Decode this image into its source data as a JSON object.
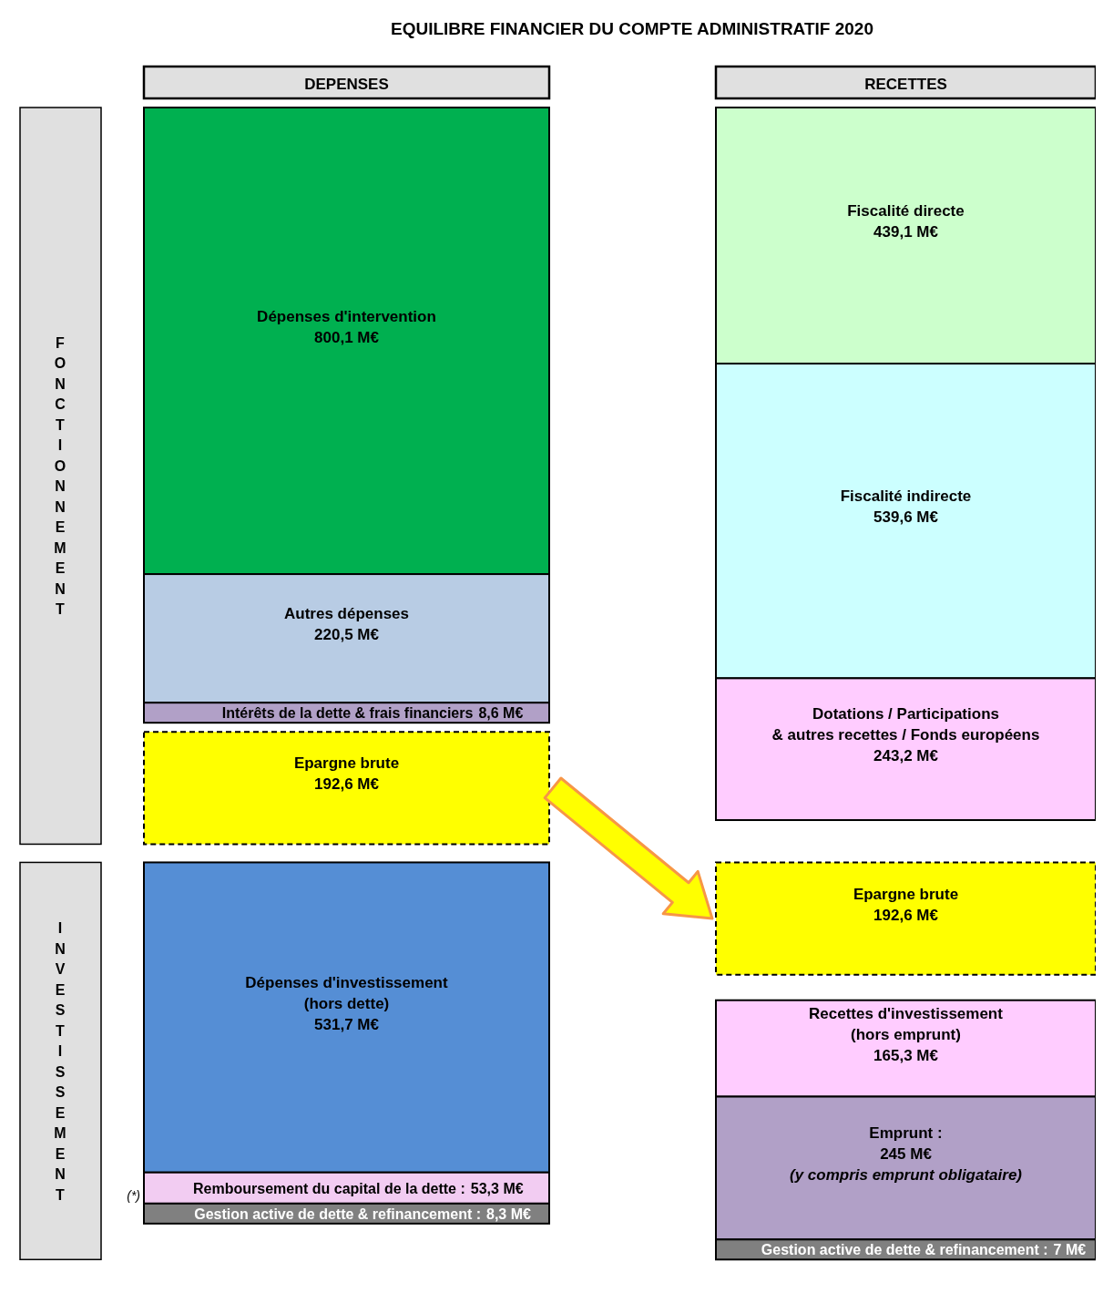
{
  "chart_data": {
    "type": "other",
    "title": "EQUILIBRE FINANCIER DU COMPTE ADMINISTRATIF 2020",
    "categories": [
      "DEPENSES",
      "RECETTES"
    ],
    "annotations": [
      "FONCTIONNEMENT",
      "INVESTISSEMENT",
      "(*)"
    ],
    "series": [
      {
        "name": "Dépenses d'intervention",
        "color": "#00b050",
        "values": [
          800.1,
          null
        ],
        "value_labels": [
          "800,1 M€",
          null
        ]
      },
      {
        "name": "Autres dépenses",
        "color": "#b8cce4",
        "values": [
          220.5,
          null
        ],
        "value_labels": [
          "220,5 M€",
          null
        ]
      },
      {
        "name": "Intérêts de la dette & frais financiers",
        "color": "#b1a0c7",
        "values": [
          8.6,
          null
        ],
        "value_labels": [
          "8,6 M€",
          null
        ]
      },
      {
        "name": "Epargne brute",
        "color": "#ffff00",
        "line_style": "dashed",
        "values": [
          192.6,
          null
        ],
        "value_labels": [
          "192,6 M€",
          null
        ]
      },
      {
        "name": "Dépenses d'investissement\n(hors dette)",
        "color": "#558ed5",
        "values": [
          531.7,
          null
        ],
        "value_labels": [
          "531,7 M€",
          null
        ]
      },
      {
        "name": "Remboursement du capital de la dette :",
        "color": "#f2ccf2",
        "values": [
          53.3,
          null
        ],
        "value_labels": [
          "53,3 M€",
          null
        ]
      },
      {
        "name": "Gestion active de dette & refinancement :",
        "color": "#808080",
        "values": [
          8.3,
          null
        ],
        "value_labels": [
          "8,3 M€",
          null
        ]
      },
      {
        "name": "Fiscalité directe",
        "color": "#ccffcc",
        "values": [
          null,
          439.1
        ],
        "value_labels": [
          null,
          "439,1 M€"
        ]
      },
      {
        "name": "Fiscalité indirecte",
        "color": "#ccffff",
        "values": [
          null,
          539.6
        ],
        "value_labels": [
          null,
          "539,6 M€"
        ]
      },
      {
        "name": "Dotations / Participations\n& autres recettes / Fonds européens",
        "color": "#ffccff",
        "values": [
          null,
          243.2
        ],
        "value_labels": [
          null,
          "243,2 M€"
        ]
      },
      {
        "name": "Epargne brute",
        "color": "#ffff00",
        "line_style": "dashed",
        "values": [
          null,
          192.6
        ],
        "value_labels": [
          null,
          "192,6 M€"
        ]
      },
      {
        "name": "Recettes d'investissement\n(hors emprunt)",
        "color": "#ffccff",
        "values": [
          null,
          165.3
        ],
        "value_labels": [
          null,
          "165,3 M€"
        ]
      },
      {
        "name": "Emprunt :",
        "color": "#b1a0c7",
        "values": [
          null,
          245
        ],
        "value_labels": [
          null,
          "245 M€\n(y compris emprunt obligataire)"
        ]
      },
      {
        "name": "Gestion active de dette & refinancement :",
        "color": "#808080",
        "values": [
          null,
          7
        ],
        "value_labels": [
          null,
          "7 M€"
        ]
      }
    ]
  }
}
